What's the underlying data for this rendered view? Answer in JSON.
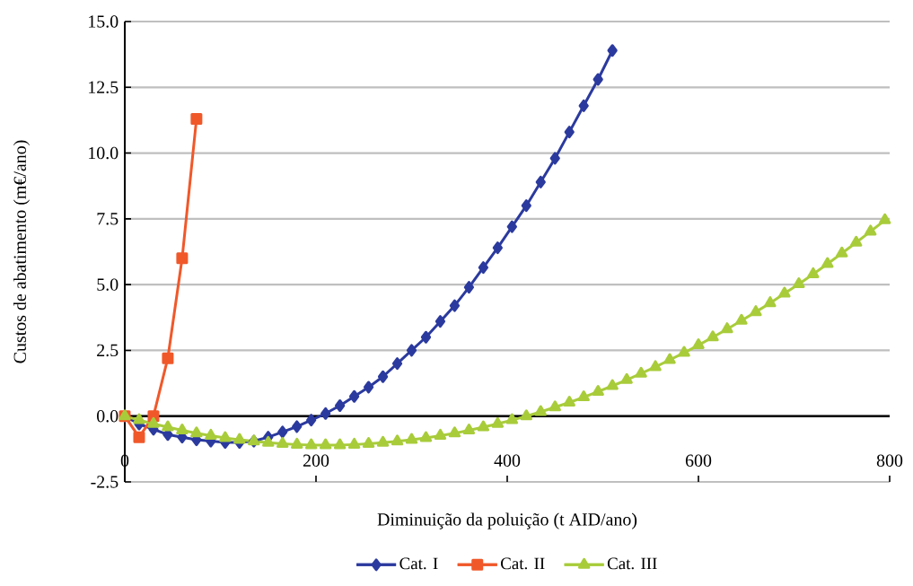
{
  "chart_data": {
    "type": "line",
    "xlabel": "Diminuição da poluição (t AID/ano)",
    "ylabel": "Custos de abatimento (m€/ano)",
    "xlim": [
      0,
      800
    ],
    "ylim": [
      -2.5,
      15
    ],
    "xticks": [
      0,
      200,
      400,
      600,
      800
    ],
    "yticks": [
      {
        "value": -2.5,
        "label": "-2.5"
      },
      {
        "value": 0,
        "label": "0.0"
      },
      {
        "value": 2.5,
        "label": "2.5"
      },
      {
        "value": 5,
        "label": "5.0"
      },
      {
        "value": 7.5,
        "label": "7.5"
      },
      {
        "value": 10,
        "label": "10.0"
      },
      {
        "value": 12.5,
        "label": "12.5"
      },
      {
        "value": 15,
        "label": "15.0"
      }
    ],
    "grid": "y",
    "legend": "bottom",
    "series": [
      {
        "name": "Cat. I",
        "color": "#2b3a9e",
        "marker": "diamond",
        "x": [
          0,
          15,
          30,
          45,
          60,
          75,
          90,
          105,
          120,
          135,
          150,
          165,
          180,
          195,
          210,
          225,
          240,
          255,
          270,
          285,
          300,
          315,
          330,
          345,
          360,
          375,
          390,
          405,
          420,
          435,
          450,
          465,
          480,
          495,
          510
        ],
        "values": [
          0,
          -0.3,
          -0.5,
          -0.7,
          -0.8,
          -0.9,
          -0.95,
          -1.0,
          -1.0,
          -0.95,
          -0.8,
          -0.6,
          -0.4,
          -0.15,
          0.1,
          0.4,
          0.75,
          1.1,
          1.5,
          2.0,
          2.5,
          3.0,
          3.6,
          4.2,
          4.9,
          5.65,
          6.4,
          7.2,
          8.0,
          8.9,
          9.8,
          10.8,
          11.8,
          12.8,
          13.9
        ]
      },
      {
        "name": "Cat. II",
        "color": "#f0582a",
        "marker": "square",
        "x": [
          0,
          15,
          30,
          45,
          60,
          75
        ],
        "values": [
          0,
          -0.8,
          0,
          2.2,
          6.0,
          11.3
        ]
      },
      {
        "name": "Cat. III",
        "color": "#a8cc3a",
        "marker": "triangle",
        "x": [
          0,
          15,
          30,
          45,
          60,
          75,
          90,
          105,
          120,
          135,
          150,
          165,
          180,
          195,
          210,
          225,
          240,
          255,
          270,
          285,
          300,
          315,
          330,
          345,
          360,
          375,
          390,
          405,
          420,
          435,
          450,
          465,
          480,
          495,
          510,
          525,
          540,
          555,
          570,
          585,
          600,
          615,
          630,
          645,
          660,
          675,
          690,
          705,
          720,
          735,
          750,
          765,
          780,
          795
        ],
        "values": [
          0,
          -0.15,
          -0.29,
          -0.42,
          -0.54,
          -0.65,
          -0.74,
          -0.83,
          -0.9,
          -0.96,
          -1.01,
          -1.05,
          -1.08,
          -1.1,
          -1.1,
          -1.1,
          -1.08,
          -1.05,
          -1.01,
          -0.96,
          -0.9,
          -0.83,
          -0.74,
          -0.65,
          -0.54,
          -0.42,
          -0.29,
          -0.15,
          0,
          0.16,
          0.34,
          0.52,
          0.72,
          0.93,
          1.15,
          1.38,
          1.62,
          1.87,
          2.14,
          2.41,
          2.7,
          3.0,
          3.31,
          3.63,
          3.96,
          4.3,
          4.66,
          5.02,
          5.4,
          5.79,
          6.19,
          6.6,
          7.02,
          7.45
        ]
      }
    ]
  }
}
